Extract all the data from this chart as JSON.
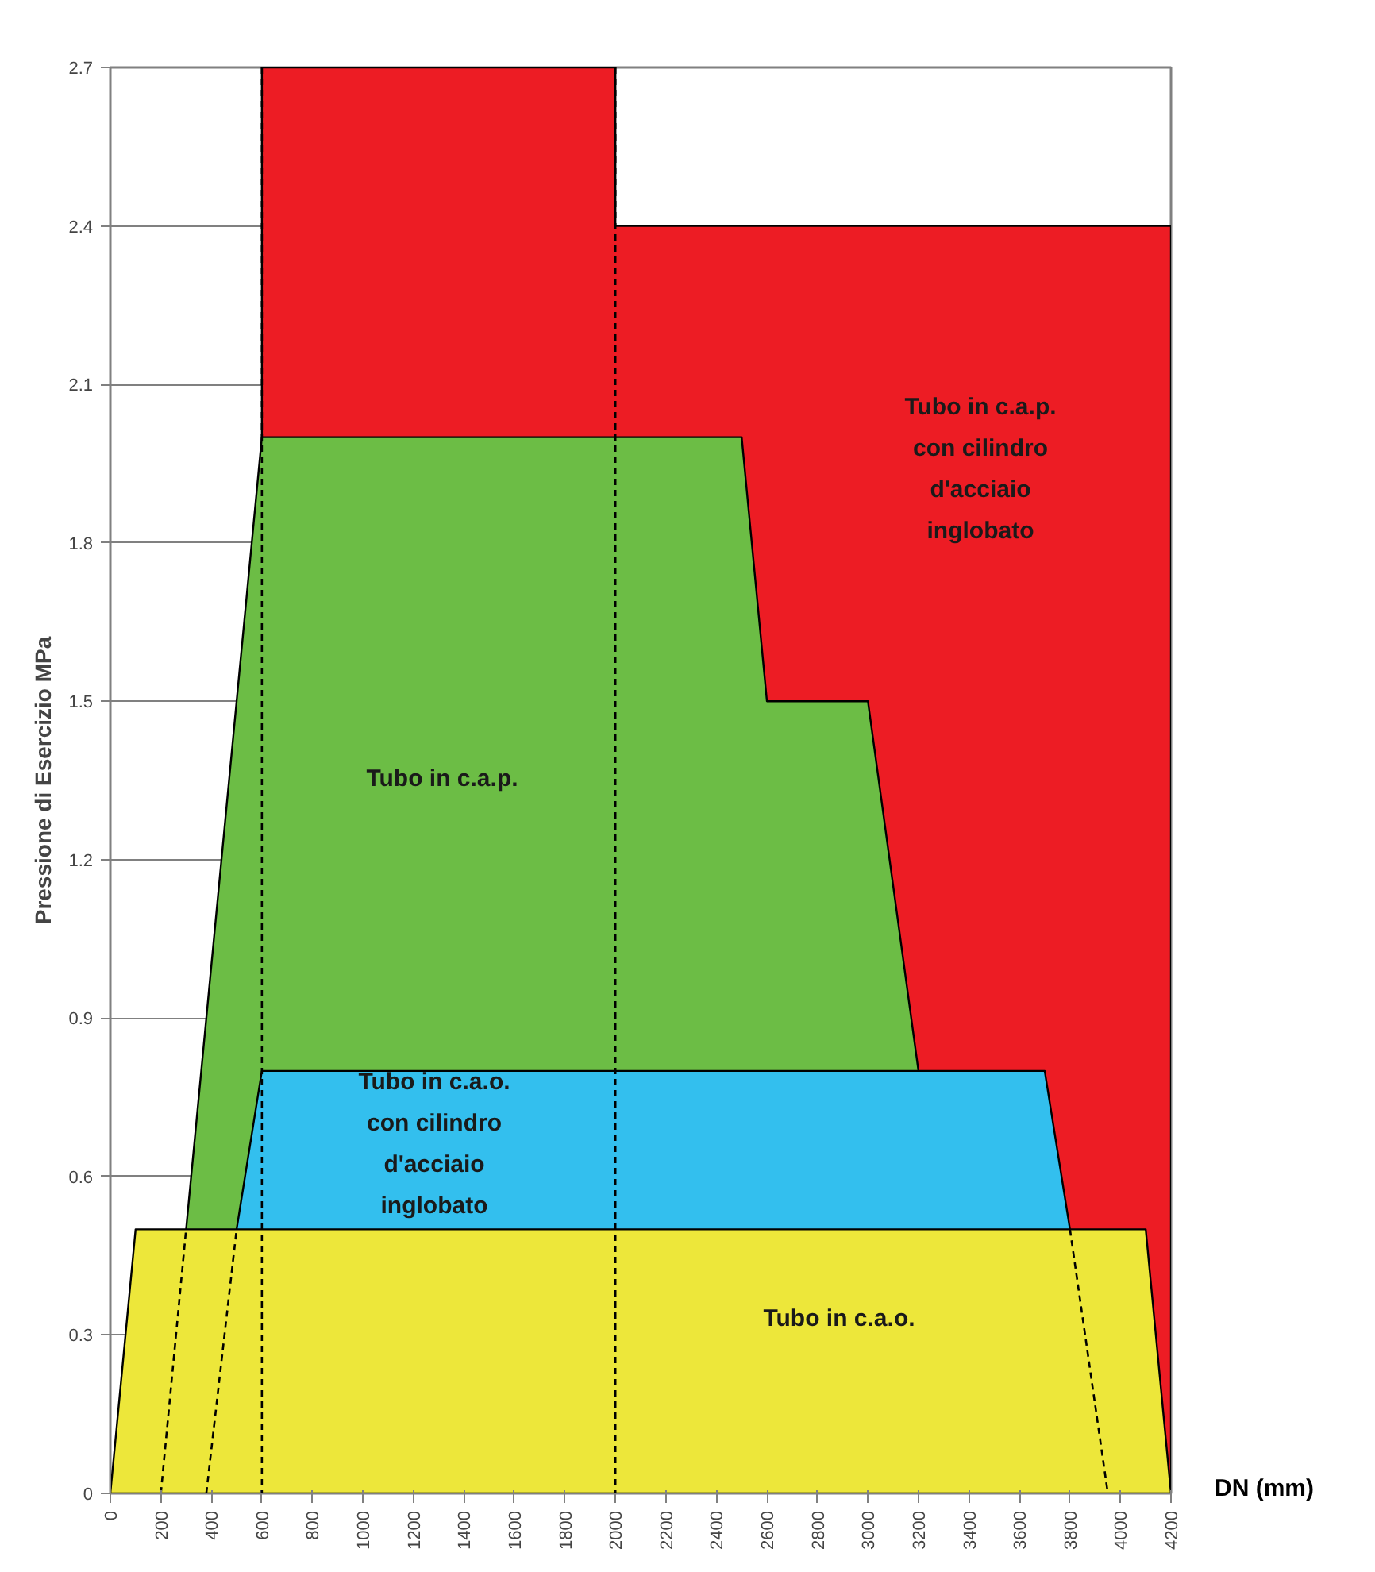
{
  "chart_data": {
    "type": "area",
    "ylabel": "Pressione di Esercizio MPa",
    "xlabel": "DN (mm)",
    "xlim": [
      0,
      4200
    ],
    "ylim": [
      0,
      2.7
    ],
    "xticks": [
      0,
      200,
      400,
      600,
      800,
      1000,
      1200,
      1400,
      1600,
      1800,
      2000,
      2200,
      2400,
      2600,
      2800,
      3000,
      3200,
      3400,
      3600,
      3800,
      4000,
      4200
    ],
    "yticks": [
      0,
      0.3,
      0.6,
      0.9,
      1.2,
      1.5,
      1.8,
      2.1,
      2.4,
      2.7
    ],
    "grid": "y",
    "series": [
      {
        "color": "#ed1c24",
        "x": [
          600,
          2000,
          2000,
          4200,
          4200
        ],
        "values": [
          2.7,
          2.7,
          2.4,
          2.4,
          0
        ]
      },
      {
        "color": "#6cbd45",
        "x": [
          300,
          600,
          2500,
          2600,
          3000,
          3200
        ],
        "values": [
          0.5,
          2.0,
          2.0,
          1.5,
          1.5,
          0.8
        ]
      },
      {
        "color": "#33bfee",
        "x": [
          500,
          600,
          3700,
          3800
        ],
        "values": [
          0.5,
          0.8,
          0.8,
          0.5
        ]
      },
      {
        "color": "#ede73a",
        "x": [
          0,
          100,
          4100,
          4200
        ],
        "values": [
          0,
          0.5,
          0.5,
          0
        ]
      },
      {
        "type": "line",
        "line_style": "dashed",
        "color": "#000000",
        "x": [
          200,
          300
        ],
        "values": [
          0,
          0.5
        ]
      },
      {
        "type": "line",
        "line_style": "dashed",
        "color": "#000000",
        "x": [
          380,
          500
        ],
        "values": [
          0,
          0.5
        ]
      },
      {
        "type": "line",
        "line_style": "dashed",
        "color": "#000000",
        "x": [
          3800,
          3950
        ],
        "values": [
          0.5,
          0
        ]
      }
    ],
    "ref_lines": [
      {
        "axis": "x",
        "value": 600,
        "line_style": "dashed",
        "color": "#000000"
      },
      {
        "axis": "x",
        "value": 2000,
        "line_style": "dashed",
        "color": "#000000"
      }
    ],
    "annotations": [
      "Tubo in c.a.p.\ncon cilindro\nd'acciaio\ninglobato",
      "Tubo in c.a.p.",
      "Tubo in c.a.o.\ncon cilindro\nd'acciaio\ninglobato",
      "Tubo in c.a.o."
    ]
  }
}
